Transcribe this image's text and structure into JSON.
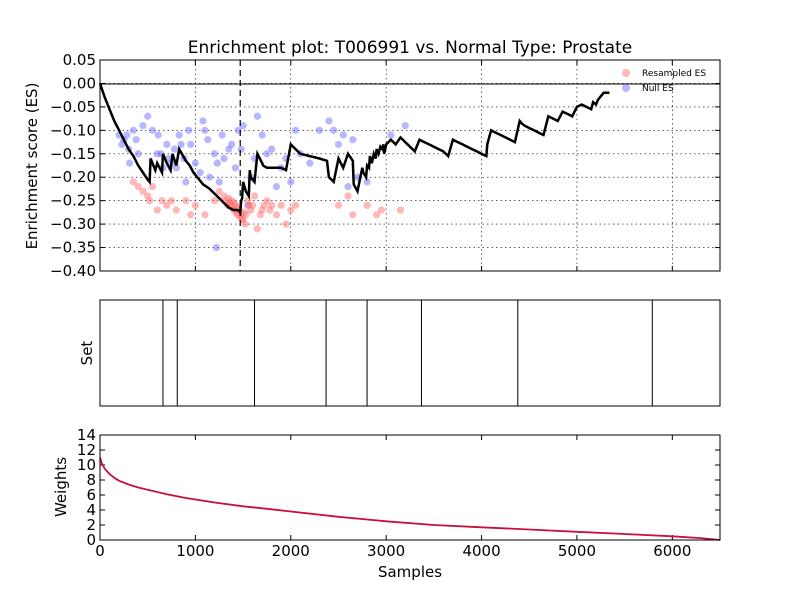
{
  "chart_data": [
    {
      "type": "line",
      "title": "Enrichment plot: T006991 vs. Normal Type: Prostate",
      "ylabel": "Enrichment score (ES)",
      "xlabel": "",
      "xlim": [
        0,
        6500
      ],
      "ylim": [
        -0.4,
        0.05
      ],
      "xticks": [
        0,
        1000,
        2000,
        3000,
        4000,
        5000,
        6000
      ],
      "yticks": [
        0.05,
        0.0,
        -0.05,
        -0.1,
        -0.15,
        -0.2,
        -0.25,
        -0.3,
        -0.35,
        -0.4
      ],
      "ytick_labels": [
        "0.05",
        "0.00",
        "−0.05",
        "−0.10",
        "−0.15",
        "−0.20",
        "−0.25",
        "−0.30",
        "−0.35",
        "−0.40"
      ],
      "grid": true,
      "legend_position": "top-right",
      "vline_x": 1470,
      "running_es": {
        "x": [
          0,
          50,
          100,
          150,
          200,
          250,
          300,
          350,
          400,
          450,
          500,
          520,
          530,
          580,
          600,
          650,
          660,
          700,
          740,
          760,
          800,
          830,
          900,
          940,
          980,
          1000,
          1040,
          1080,
          1150,
          1200,
          1250,
          1300,
          1350,
          1400,
          1440,
          1460,
          1470,
          1480,
          1490,
          1500,
          1530,
          1560,
          1570,
          1580,
          1620,
          1650,
          1700,
          1710,
          1750,
          1800,
          1850,
          1900,
          1950,
          2000,
          2050,
          2100,
          2200,
          2300,
          2380,
          2400,
          2450,
          2500,
          2550,
          2600,
          2650,
          2660,
          2700,
          2750,
          2760,
          2790,
          2800,
          2820,
          2830,
          2850,
          2870,
          2890,
          2900,
          2920,
          2940,
          2960,
          2970,
          2980,
          3000,
          3050,
          3100,
          3150,
          3200,
          3250,
          3300,
          3350,
          3400,
          3450,
          3500,
          3550,
          3600,
          3650,
          3700,
          3750,
          3800,
          3850,
          3900,
          3950,
          4000,
          4050,
          4060,
          4100,
          4150,
          4200,
          4250,
          4300,
          4350,
          4400,
          4420,
          4450,
          4500,
          4550,
          4600,
          4650,
          4700,
          4750,
          4800,
          4850,
          4900,
          4950,
          5000,
          5050,
          5100,
          5150,
          5170,
          5200,
          5220,
          5240,
          5260,
          5280,
          5300,
          5320,
          5340
        ],
        "y": [
          0.0,
          -0.03,
          -0.055,
          -0.08,
          -0.1,
          -0.12,
          -0.14,
          -0.155,
          -0.175,
          -0.19,
          -0.205,
          -0.21,
          -0.16,
          -0.185,
          -0.17,
          -0.19,
          -0.15,
          -0.17,
          -0.185,
          -0.15,
          -0.175,
          -0.14,
          -0.165,
          -0.175,
          -0.19,
          -0.195,
          -0.205,
          -0.215,
          -0.225,
          -0.235,
          -0.245,
          -0.255,
          -0.265,
          -0.27,
          -0.27,
          -0.272,
          -0.275,
          -0.25,
          -0.245,
          -0.21,
          -0.23,
          -0.24,
          -0.185,
          -0.2,
          -0.21,
          -0.15,
          -0.17,
          -0.175,
          -0.18,
          -0.18,
          -0.18,
          -0.18,
          -0.185,
          -0.13,
          -0.14,
          -0.15,
          -0.155,
          -0.16,
          -0.165,
          -0.2,
          -0.21,
          -0.16,
          -0.18,
          -0.15,
          -0.165,
          -0.215,
          -0.23,
          -0.18,
          -0.19,
          -0.2,
          -0.175,
          -0.18,
          -0.155,
          -0.17,
          -0.15,
          -0.16,
          -0.14,
          -0.15,
          -0.135,
          -0.14,
          -0.13,
          -0.15,
          -0.13,
          -0.12,
          -0.13,
          -0.115,
          -0.125,
          -0.135,
          -0.145,
          -0.12,
          -0.125,
          -0.13,
          -0.135,
          -0.14,
          -0.145,
          -0.155,
          -0.12,
          -0.125,
          -0.13,
          -0.135,
          -0.14,
          -0.145,
          -0.15,
          -0.155,
          -0.13,
          -0.1,
          -0.105,
          -0.11,
          -0.115,
          -0.12,
          -0.125,
          -0.08,
          -0.085,
          -0.09,
          -0.095,
          -0.1,
          -0.105,
          -0.11,
          -0.07,
          -0.075,
          -0.08,
          -0.06,
          -0.065,
          -0.07,
          -0.05,
          -0.045,
          -0.05,
          -0.055,
          -0.04,
          -0.045,
          -0.035,
          -0.03,
          -0.025,
          -0.02,
          -0.02,
          -0.02,
          -0.02
        ]
      },
      "resampled_es": [
        [
          350,
          -0.21
        ],
        [
          400,
          -0.22
        ],
        [
          450,
          -0.23
        ],
        [
          500,
          -0.24
        ],
        [
          520,
          -0.25
        ],
        [
          550,
          -0.22
        ],
        [
          600,
          -0.27
        ],
        [
          650,
          -0.25
        ],
        [
          700,
          -0.26
        ],
        [
          750,
          -0.25
        ],
        [
          800,
          -0.27
        ],
        [
          900,
          -0.25
        ],
        [
          950,
          -0.28
        ],
        [
          1000,
          -0.26
        ],
        [
          1100,
          -0.28
        ],
        [
          1200,
          -0.25
        ],
        [
          1250,
          -0.23
        ],
        [
          1300,
          -0.24
        ],
        [
          1320,
          -0.25
        ],
        [
          1340,
          -0.26
        ],
        [
          1350,
          -0.245
        ],
        [
          1360,
          -0.255
        ],
        [
          1370,
          -0.26
        ],
        [
          1380,
          -0.25
        ],
        [
          1390,
          -0.265
        ],
        [
          1400,
          -0.27
        ],
        [
          1410,
          -0.255
        ],
        [
          1420,
          -0.26
        ],
        [
          1430,
          -0.275
        ],
        [
          1440,
          -0.28
        ],
        [
          1450,
          -0.265
        ],
        [
          1460,
          -0.27
        ],
        [
          1470,
          -0.285
        ],
        [
          1480,
          -0.28
        ],
        [
          1490,
          -0.29
        ],
        [
          1500,
          -0.29
        ],
        [
          1510,
          -0.275
        ],
        [
          1520,
          -0.3
        ],
        [
          1530,
          -0.28
        ],
        [
          1550,
          -0.25
        ],
        [
          1560,
          -0.26
        ],
        [
          1580,
          -0.27
        ],
        [
          1600,
          -0.26
        ],
        [
          1620,
          -0.24
        ],
        [
          1650,
          -0.31
        ],
        [
          1680,
          -0.28
        ],
        [
          1700,
          -0.27
        ],
        [
          1720,
          -0.26
        ],
        [
          1750,
          -0.25
        ],
        [
          1780,
          -0.27
        ],
        [
          1800,
          -0.26
        ],
        [
          1850,
          -0.28
        ],
        [
          1900,
          -0.26
        ],
        [
          1950,
          -0.3
        ],
        [
          2000,
          -0.27
        ],
        [
          2050,
          -0.26
        ],
        [
          2500,
          -0.26
        ],
        [
          2600,
          -0.24
        ],
        [
          2650,
          -0.28
        ],
        [
          2800,
          -0.26
        ],
        [
          2900,
          -0.28
        ],
        [
          2950,
          -0.27
        ],
        [
          3150,
          -0.27
        ]
      ],
      "null_es": [
        [
          200,
          -0.11
        ],
        [
          230,
          -0.13
        ],
        [
          250,
          -0.12
        ],
        [
          280,
          -0.11
        ],
        [
          300,
          -0.14
        ],
        [
          310,
          -0.17
        ],
        [
          350,
          -0.1
        ],
        [
          380,
          -0.12
        ],
        [
          400,
          -0.15
        ],
        [
          450,
          -0.09
        ],
        [
          500,
          -0.07
        ],
        [
          550,
          -0.1
        ],
        [
          600,
          -0.15
        ],
        [
          610,
          -0.11
        ],
        [
          640,
          -0.15
        ],
        [
          660,
          -0.18
        ],
        [
          700,
          -0.13
        ],
        [
          720,
          -0.16
        ],
        [
          750,
          -0.17
        ],
        [
          780,
          -0.14
        ],
        [
          800,
          -0.18
        ],
        [
          830,
          -0.11
        ],
        [
          850,
          -0.13
        ],
        [
          880,
          -0.16
        ],
        [
          900,
          -0.21
        ],
        [
          930,
          -0.1
        ],
        [
          950,
          -0.13
        ],
        [
          1000,
          -0.17
        ],
        [
          1050,
          -0.19
        ],
        [
          1080,
          -0.08
        ],
        [
          1100,
          -0.1
        ],
        [
          1130,
          -0.12
        ],
        [
          1150,
          -0.2
        ],
        [
          1200,
          -0.15
        ],
        [
          1230,
          -0.17
        ],
        [
          1250,
          -0.21
        ],
        [
          1280,
          -0.11
        ],
        [
          1300,
          -0.16
        ],
        [
          1350,
          -0.14
        ],
        [
          1380,
          -0.13
        ],
        [
          1420,
          -0.18
        ],
        [
          1450,
          -0.1
        ],
        [
          1480,
          -0.14
        ],
        [
          1500,
          -0.09
        ],
        [
          1550,
          -0.26
        ],
        [
          1580,
          -0.2
        ],
        [
          1620,
          -0.16
        ],
        [
          1650,
          -0.07
        ],
        [
          1700,
          -0.11
        ],
        [
          1750,
          -0.15
        ],
        [
          1800,
          -0.14
        ],
        [
          1850,
          -0.22
        ],
        [
          1900,
          -0.18
        ],
        [
          1950,
          -0.16
        ],
        [
          2000,
          -0.21
        ],
        [
          2050,
          -0.1
        ],
        [
          2100,
          -0.15
        ],
        [
          2200,
          -0.17
        ],
        [
          2300,
          -0.1
        ],
        [
          2400,
          -0.08
        ],
        [
          2450,
          -0.1
        ],
        [
          2500,
          -0.13
        ],
        [
          2550,
          -0.11
        ],
        [
          2600,
          -0.22
        ],
        [
          2650,
          -0.12
        ],
        [
          2700,
          -0.2
        ],
        [
          2800,
          -0.21
        ],
        [
          3050,
          -0.11
        ],
        [
          3200,
          -0.09
        ],
        [
          1220,
          -0.35
        ]
      ],
      "legend": [
        {
          "name": "Resampled ES",
          "color": "#ff7070"
        },
        {
          "name": "Null ES",
          "color": "#7070ff"
        }
      ]
    },
    {
      "type": "eventplot",
      "ylabel": "Set",
      "xlim": [
        0,
        6500
      ],
      "hits": [
        660,
        810,
        1620,
        2370,
        2800,
        3370,
        4380,
        5790
      ]
    },
    {
      "type": "line",
      "ylabel": "Weights",
      "xlabel": "Samples",
      "xlim": [
        0,
        6500
      ],
      "ylim": [
        0,
        14
      ],
      "xticks": [
        0,
        1000,
        2000,
        3000,
        4000,
        5000,
        6000
      ],
      "yticks": [
        0,
        2,
        4,
        6,
        8,
        10,
        12,
        14
      ],
      "series": [
        {
          "x": [
            0,
            20,
            50,
            100,
            150,
            200,
            300,
            400,
            500,
            700,
            900,
            1000,
            1200,
            1500,
            1800,
            2000,
            2500,
            3000,
            3500,
            4000,
            4500,
            5000,
            5500,
            6000,
            6300,
            6500
          ],
          "y": [
            11.0,
            10.2,
            9.5,
            8.8,
            8.3,
            7.9,
            7.4,
            7.0,
            6.7,
            6.1,
            5.6,
            5.4,
            5.0,
            4.5,
            4.1,
            3.8,
            3.1,
            2.5,
            2.0,
            1.7,
            1.4,
            1.1,
            0.8,
            0.5,
            0.25,
            0.0
          ]
        }
      ],
      "line_color": "#c8103c"
    }
  ]
}
